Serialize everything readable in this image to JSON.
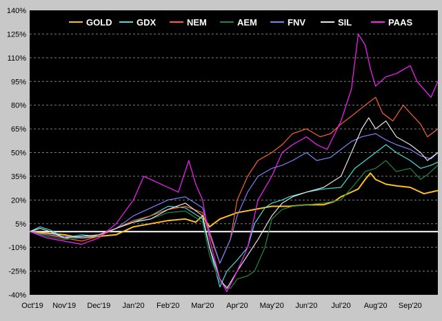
{
  "chart_data": {
    "type": "line",
    "title": "",
    "xlabel": "",
    "ylabel": "",
    "ylim": [
      -40,
      140
    ],
    "yticks": [
      -40,
      -25,
      -10,
      5,
      20,
      35,
      50,
      65,
      80,
      95,
      110,
      125,
      140
    ],
    "ytick_labels": [
      "-40%",
      "-25%",
      "-10%",
      "5%",
      "20%",
      "35%",
      "50%",
      "65%",
      "80%",
      "95%",
      "110%",
      "125%",
      "140%"
    ],
    "x_month_labels": [
      "Oct'19",
      "Nov'19",
      "Dec'19",
      "Jan'20",
      "Feb'20",
      "Mar'20",
      "Apr'20",
      "May'20",
      "Jun'20",
      "Jul'20",
      "Aug'20",
      "Sep'20"
    ],
    "x_range_months": [
      0,
      11.8
    ],
    "grid": "horizontal dashed",
    "legend_position": "top",
    "background": "#000000",
    "baseline": 0,
    "series": [
      {
        "name": "GOLD",
        "color": "#ffc020",
        "points": [
          [
            0,
            0
          ],
          [
            0.5,
            -1
          ],
          [
            1,
            -2
          ],
          [
            1.5,
            -4
          ],
          [
            2,
            -3
          ],
          [
            2.5,
            -2
          ],
          [
            3,
            3
          ],
          [
            3.5,
            5
          ],
          [
            4,
            7
          ],
          [
            4.5,
            8
          ],
          [
            4.8,
            6
          ],
          [
            5,
            10
          ],
          [
            5.2,
            3
          ],
          [
            5.5,
            8
          ],
          [
            6,
            12
          ],
          [
            6.5,
            14
          ],
          [
            7,
            16
          ],
          [
            7.5,
            16
          ],
          [
            8,
            17
          ],
          [
            8.5,
            17
          ],
          [
            8.8,
            19
          ],
          [
            9,
            22
          ],
          [
            9.3,
            25
          ],
          [
            9.5,
            27
          ],
          [
            9.7,
            33
          ],
          [
            9.85,
            37
          ],
          [
            10,
            33
          ],
          [
            10.3,
            30
          ],
          [
            10.6,
            29
          ],
          [
            11,
            28
          ],
          [
            11.2,
            26
          ],
          [
            11.4,
            24
          ],
          [
            11.6,
            25
          ],
          [
            11.8,
            26
          ]
        ]
      },
      {
        "name": "GDX",
        "color": "#40e0e0",
        "points": [
          [
            0,
            0
          ],
          [
            0.3,
            3
          ],
          [
            0.6,
            1
          ],
          [
            1,
            -4
          ],
          [
            1.5,
            -2
          ],
          [
            2,
            -3
          ],
          [
            2.5,
            2
          ],
          [
            3,
            6
          ],
          [
            3.5,
            10
          ],
          [
            4,
            16
          ],
          [
            4.5,
            15
          ],
          [
            5,
            8
          ],
          [
            5.2,
            -10
          ],
          [
            5.5,
            -35
          ],
          [
            5.7,
            -25
          ],
          [
            6,
            -18
          ],
          [
            6.3,
            -10
          ],
          [
            6.5,
            5
          ],
          [
            6.8,
            15
          ],
          [
            7,
            18
          ],
          [
            7.3,
            20
          ],
          [
            7.5,
            22
          ],
          [
            8,
            25
          ],
          [
            8.5,
            27
          ],
          [
            9,
            28
          ],
          [
            9.4,
            40
          ],
          [
            9.7,
            45
          ],
          [
            10,
            50
          ],
          [
            10.3,
            55
          ],
          [
            10.6,
            50
          ],
          [
            11,
            45
          ],
          [
            11.3,
            40
          ],
          [
            11.6,
            42
          ],
          [
            11.8,
            44
          ]
        ]
      },
      {
        "name": "NEM",
        "color": "#ff6030",
        "points": [
          [
            0,
            0
          ],
          [
            0.5,
            -2
          ],
          [
            1,
            -4
          ],
          [
            1.5,
            -6
          ],
          [
            2,
            -3
          ],
          [
            2.5,
            2
          ],
          [
            3,
            7
          ],
          [
            3.5,
            10
          ],
          [
            4,
            14
          ],
          [
            4.5,
            16
          ],
          [
            5,
            12
          ],
          [
            5.2,
            -2
          ],
          [
            5.5,
            -20
          ],
          [
            5.8,
            -5
          ],
          [
            6,
            20
          ],
          [
            6.3,
            35
          ],
          [
            6.6,
            45
          ],
          [
            7,
            50
          ],
          [
            7.3,
            55
          ],
          [
            7.6,
            62
          ],
          [
            8,
            65
          ],
          [
            8.4,
            60
          ],
          [
            8.7,
            62
          ],
          [
            9,
            68
          ],
          [
            9.3,
            73
          ],
          [
            9.7,
            80
          ],
          [
            10,
            85
          ],
          [
            10.2,
            75
          ],
          [
            10.5,
            70
          ],
          [
            10.8,
            80
          ],
          [
            11,
            75
          ],
          [
            11.3,
            68
          ],
          [
            11.5,
            60
          ],
          [
            11.8,
            65
          ]
        ]
      },
      {
        "name": "AEM",
        "color": "#208848",
        "points": [
          [
            0,
            0
          ],
          [
            0.5,
            -3
          ],
          [
            1,
            -5
          ],
          [
            1.5,
            -4
          ],
          [
            2,
            -2
          ],
          [
            2.5,
            2
          ],
          [
            3,
            6
          ],
          [
            3.5,
            8
          ],
          [
            4,
            12
          ],
          [
            4.5,
            13
          ],
          [
            5,
            6
          ],
          [
            5.2,
            -15
          ],
          [
            5.5,
            -32
          ],
          [
            5.8,
            -36
          ],
          [
            6,
            -30
          ],
          [
            6.3,
            -28
          ],
          [
            6.5,
            -25
          ],
          [
            6.8,
            -10
          ],
          [
            7,
            8
          ],
          [
            7.3,
            14
          ],
          [
            7.6,
            16
          ],
          [
            8,
            17
          ],
          [
            8.5,
            18
          ],
          [
            9,
            20
          ],
          [
            9.4,
            30
          ],
          [
            9.7,
            38
          ],
          [
            10,
            40
          ],
          [
            10.3,
            45
          ],
          [
            10.6,
            38
          ],
          [
            11,
            40
          ],
          [
            11.3,
            33
          ],
          [
            11.5,
            36
          ],
          [
            11.8,
            42
          ]
        ]
      },
      {
        "name": "FNV",
        "color": "#8080ff",
        "points": [
          [
            0,
            0
          ],
          [
            0.5,
            -2
          ],
          [
            1,
            -3
          ],
          [
            1.5,
            -4
          ],
          [
            2,
            -2
          ],
          [
            2.5,
            2
          ],
          [
            3,
            10
          ],
          [
            3.5,
            15
          ],
          [
            4,
            20
          ],
          [
            4.5,
            22
          ],
          [
            5,
            15
          ],
          [
            5.2,
            0
          ],
          [
            5.5,
            -20
          ],
          [
            5.8,
            -5
          ],
          [
            6,
            10
          ],
          [
            6.3,
            25
          ],
          [
            6.6,
            35
          ],
          [
            7,
            40
          ],
          [
            7.3,
            42
          ],
          [
            7.6,
            45
          ],
          [
            8,
            50
          ],
          [
            8.3,
            45
          ],
          [
            8.7,
            47
          ],
          [
            9,
            52
          ],
          [
            9.3,
            57
          ],
          [
            9.6,
            60
          ],
          [
            10,
            62
          ],
          [
            10.3,
            58
          ],
          [
            10.6,
            55
          ],
          [
            11,
            52
          ],
          [
            11.3,
            48
          ],
          [
            11.6,
            46
          ],
          [
            11.8,
            50
          ]
        ]
      },
      {
        "name": "SIL",
        "color": "#e8e8e8",
        "points": [
          [
            0,
            0
          ],
          [
            0.3,
            2
          ],
          [
            0.6,
            0
          ],
          [
            1,
            -4
          ],
          [
            1.5,
            -3
          ],
          [
            2,
            -2
          ],
          [
            2.5,
            2
          ],
          [
            3,
            6
          ],
          [
            3.5,
            8
          ],
          [
            4,
            14
          ],
          [
            4.5,
            18
          ],
          [
            5,
            10
          ],
          [
            5.2,
            -10
          ],
          [
            5.5,
            -30
          ],
          [
            5.7,
            -36
          ],
          [
            6,
            -25
          ],
          [
            6.3,
            -15
          ],
          [
            6.6,
            -5
          ],
          [
            7,
            10
          ],
          [
            7.3,
            18
          ],
          [
            7.6,
            22
          ],
          [
            8,
            25
          ],
          [
            8.5,
            28
          ],
          [
            9,
            35
          ],
          [
            9.3,
            50
          ],
          [
            9.6,
            65
          ],
          [
            9.8,
            72
          ],
          [
            10,
            65
          ],
          [
            10.3,
            70
          ],
          [
            10.6,
            60
          ],
          [
            11,
            55
          ],
          [
            11.3,
            50
          ],
          [
            11.5,
            45
          ],
          [
            11.8,
            50
          ]
        ]
      },
      {
        "name": "PAAS",
        "color": "#ff20ff",
        "points": [
          [
            0,
            0
          ],
          [
            0.5,
            -4
          ],
          [
            1,
            -6
          ],
          [
            1.5,
            -8
          ],
          [
            2,
            -4
          ],
          [
            2.5,
            5
          ],
          [
            3,
            20
          ],
          [
            3.3,
            35
          ],
          [
            3.6,
            32
          ],
          [
            4,
            28
          ],
          [
            4.3,
            25
          ],
          [
            4.6,
            45
          ],
          [
            4.8,
            30
          ],
          [
            5,
            20
          ],
          [
            5.2,
            -5
          ],
          [
            5.5,
            -30
          ],
          [
            5.7,
            -38
          ],
          [
            6,
            -25
          ],
          [
            6.3,
            -10
          ],
          [
            6.6,
            20
          ],
          [
            7,
            35
          ],
          [
            7.3,
            50
          ],
          [
            7.6,
            55
          ],
          [
            8,
            60
          ],
          [
            8.3,
            55
          ],
          [
            8.6,
            52
          ],
          [
            9,
            70
          ],
          [
            9.3,
            90
          ],
          [
            9.5,
            125
          ],
          [
            9.7,
            118
          ],
          [
            9.85,
            103
          ],
          [
            10,
            92
          ],
          [
            10.3,
            98
          ],
          [
            10.6,
            100
          ],
          [
            11,
            105
          ],
          [
            11.2,
            95
          ],
          [
            11.4,
            90
          ],
          [
            11.6,
            85
          ],
          [
            11.8,
            95
          ]
        ]
      }
    ]
  }
}
